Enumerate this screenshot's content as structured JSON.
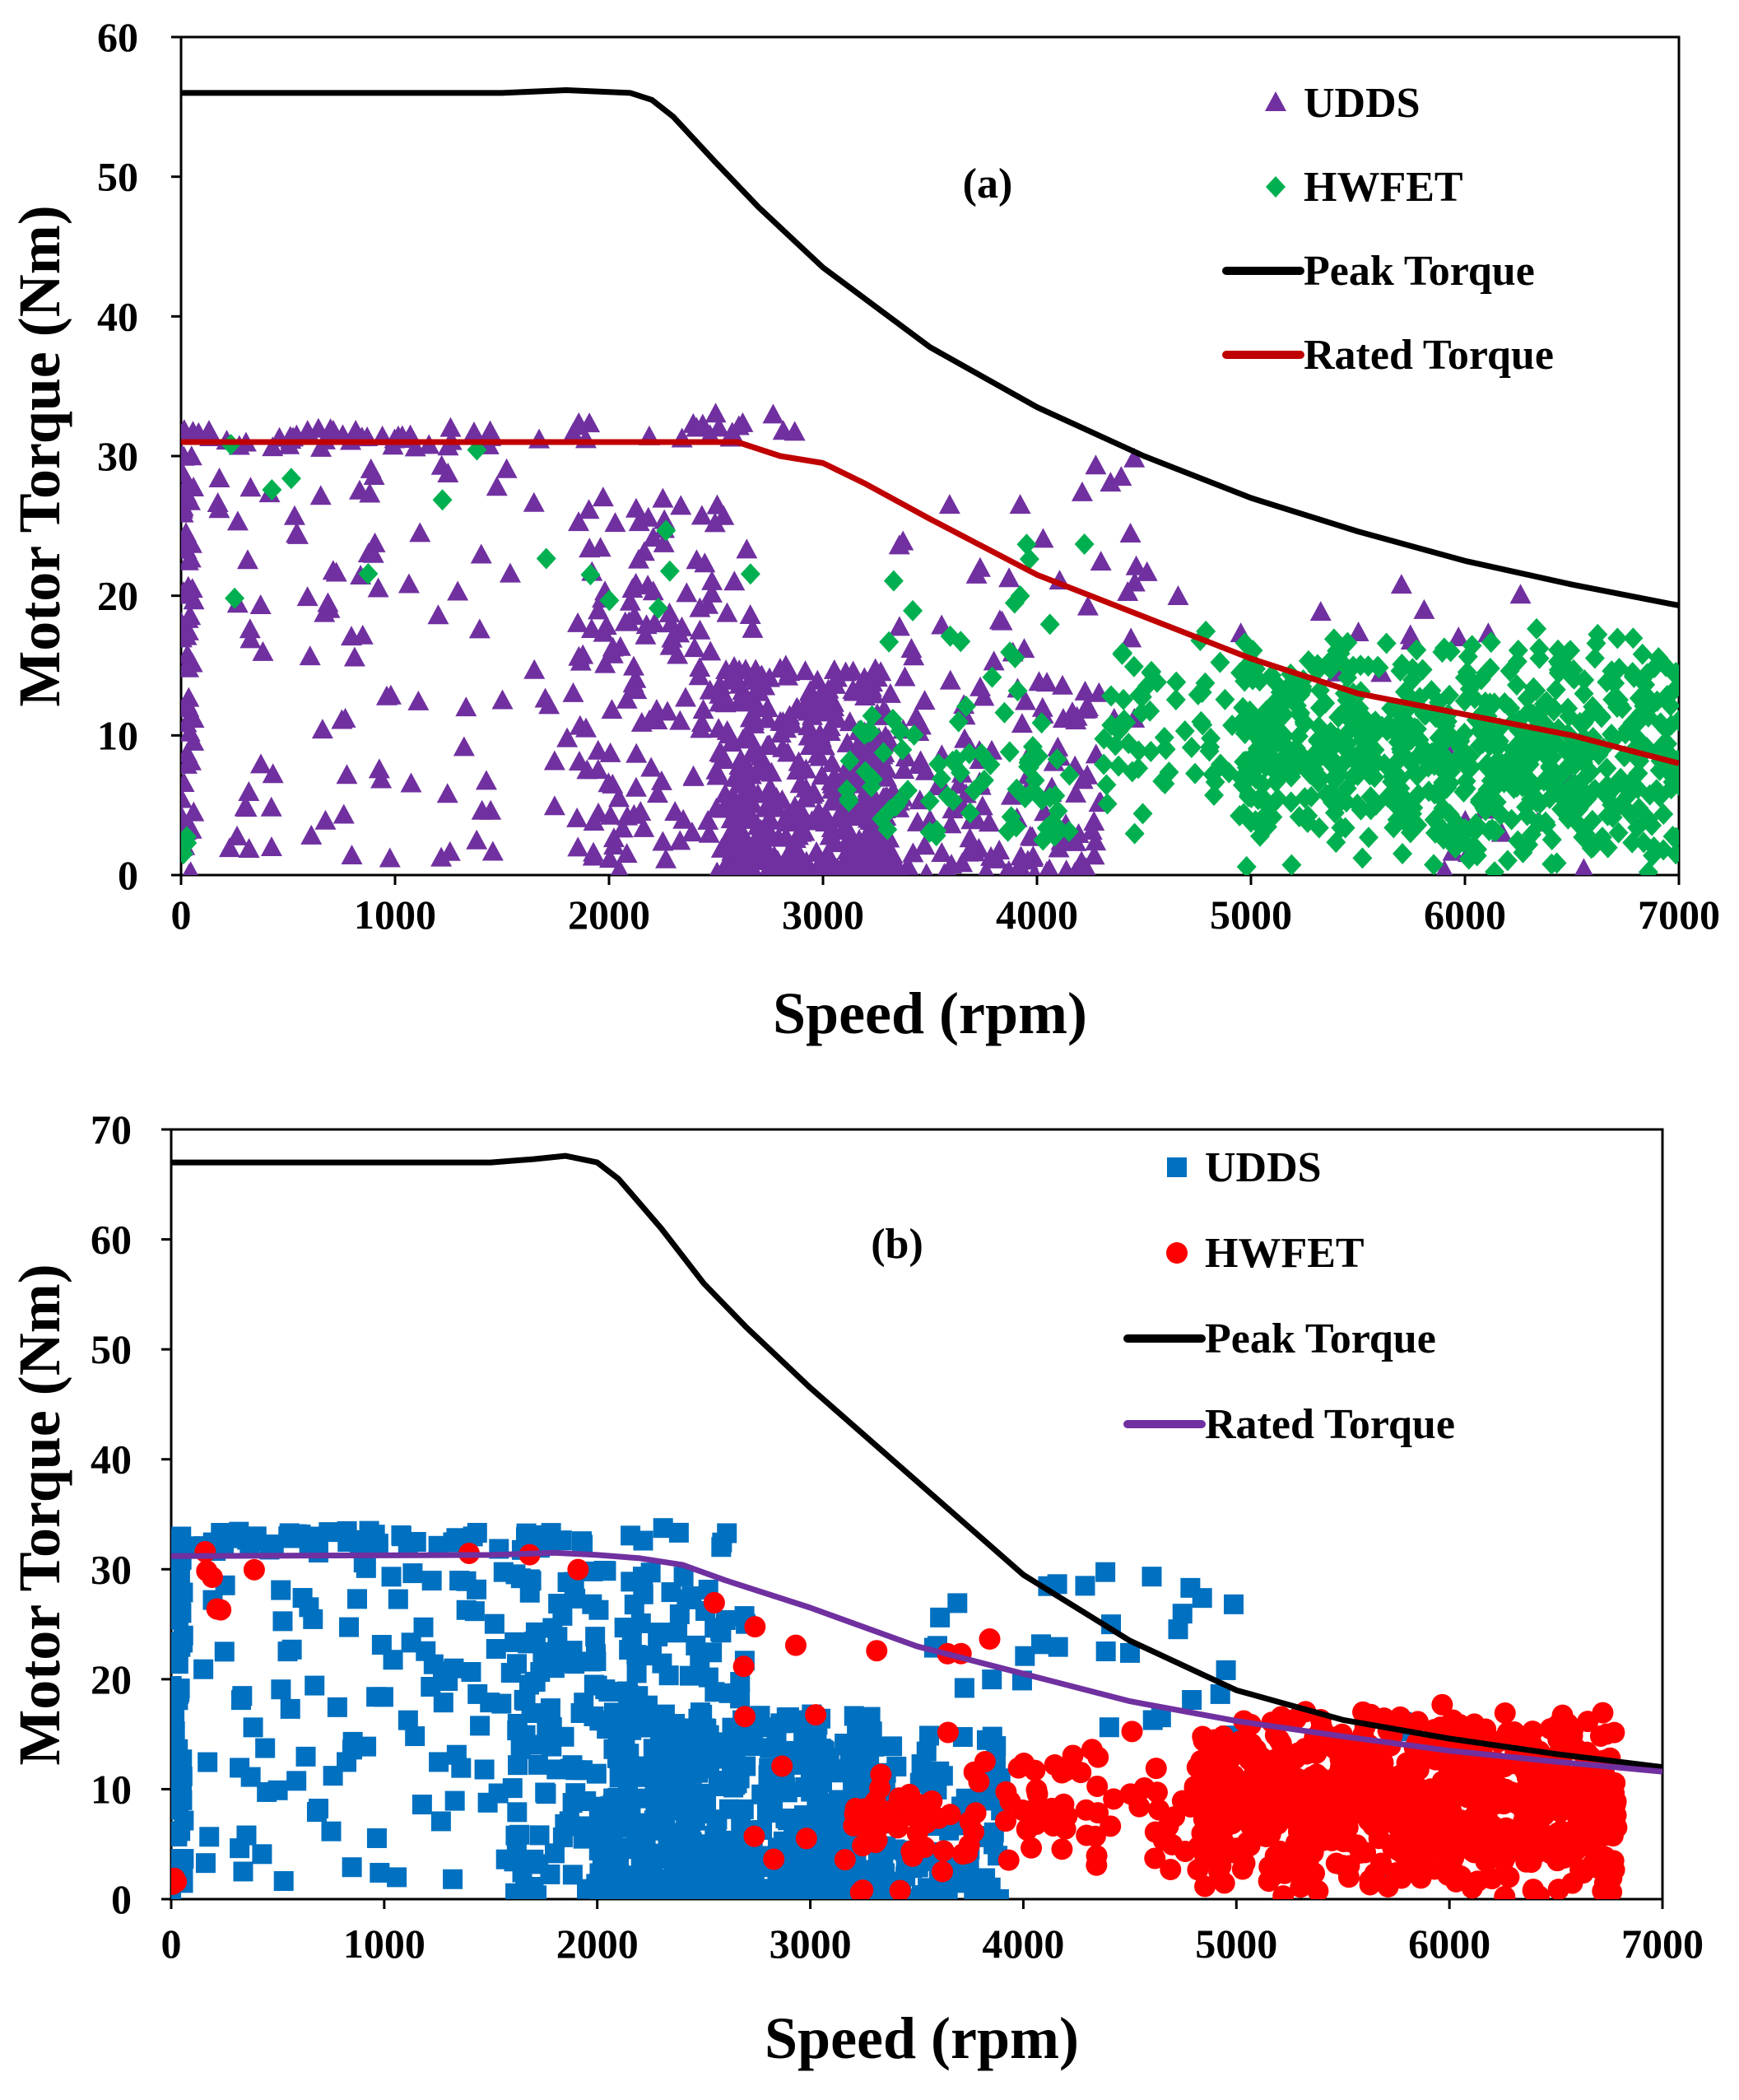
{
  "chart_data": [
    {
      "type": "scatter",
      "panel_label": "(a)",
      "xlabel": "Speed (rpm)",
      "ylabel": "Motor Torque (Nm)",
      "xlim": [
        0,
        7000
      ],
      "ylim": [
        0,
        60
      ],
      "x_ticks": [
        0,
        1000,
        2000,
        3000,
        4000,
        5000,
        6000,
        7000
      ],
      "y_ticks": [
        0,
        10,
        20,
        30,
        40,
        50,
        60
      ],
      "grid": false,
      "legend_position": "top-right",
      "series": [
        {
          "name": "UDDS",
          "kind": "scatter",
          "marker": "triangle",
          "color": "#7030a0",
          "seed": 11,
          "clusters": [
            {
              "n": 45,
              "x": [
                0,
                1700
              ],
              "y": [
                30.5,
                32
              ],
              "shape": "flat"
            },
            {
              "n": 20,
              "x": [
                1750,
                2900
              ],
              "y": [
                31,
                33
              ],
              "shape": "flat"
            },
            {
              "n": 60,
              "x": [
                0,
                60
              ],
              "y": [
                0,
                32
              ],
              "shape": "flat"
            },
            {
              "n": 90,
              "x": [
                150,
                1900
              ],
              "y": [
                1,
                30
              ],
              "shape": "flat"
            },
            {
              "n": 150,
              "x": [
                1850,
                2700
              ],
              "y": [
                0,
                27
              ],
              "shape": "flat"
            },
            {
              "n": 380,
              "x": [
                2500,
                3300
              ],
              "y": [
                0,
                15
              ],
              "shape": "low"
            },
            {
              "n": 160,
              "x": [
                3100,
                4300
              ],
              "y": [
                0,
                14
              ],
              "shape": "low"
            },
            {
              "n": 40,
              "x": [
                3300,
                4600
              ],
              "y": [
                10,
                30
              ],
              "shape": "flat"
            },
            {
              "n": 14,
              "x": [
                4600,
                6400
              ],
              "y": [
                12,
                21
              ],
              "shape": "flat"
            },
            {
              "n": 12,
              "x": [
                5900,
                6600
              ],
              "y": [
                0,
                10
              ],
              "shape": "flat"
            }
          ]
        },
        {
          "name": "HWFET",
          "kind": "scatter",
          "marker": "diamond",
          "color": "#00b050",
          "seed": 23,
          "clusters": [
            {
              "n": 14,
              "x": [
                0,
                2700
              ],
              "y": [
                19,
                31
              ],
              "shape": "flat"
            },
            {
              "n": 4,
              "x": [
                0,
                30
              ],
              "y": [
                0,
                3
              ],
              "shape": "flat"
            },
            {
              "n": 70,
              "x": [
                3100,
                4200
              ],
              "y": [
                1,
                13
              ],
              "shape": "mid"
            },
            {
              "n": 15,
              "x": [
                3300,
                4500
              ],
              "y": [
                13,
                25
              ],
              "shape": "flat"
            },
            {
              "n": 70,
              "x": [
                4300,
                5000
              ],
              "y": [
                2,
                18
              ],
              "shape": "mid"
            },
            {
              "n": 720,
              "x": [
                4950,
                7000
              ],
              "y": [
                0,
                18
              ],
              "shape": "mid"
            }
          ]
        },
        {
          "name": "Peak Torque",
          "kind": "line",
          "color": "#000000",
          "width": 7,
          "points": [
            [
              0,
              56
            ],
            [
              1500,
              56
            ],
            [
              1800,
              56.2
            ],
            [
              2100,
              56
            ],
            [
              2200,
              55.5
            ],
            [
              2300,
              54.3
            ],
            [
              2500,
              51
            ],
            [
              2700,
              47.8
            ],
            [
              3000,
              43.5
            ],
            [
              3500,
              37.8
            ],
            [
              4000,
              33.5
            ],
            [
              4500,
              30
            ],
            [
              5000,
              27
            ],
            [
              5500,
              24.6
            ],
            [
              6000,
              22.5
            ],
            [
              6500,
              20.8
            ],
            [
              7000,
              19.3
            ]
          ]
        },
        {
          "name": "Rated Torque",
          "kind": "line",
          "color": "#c00000",
          "width": 7,
          "points": [
            [
              0,
              31
            ],
            [
              2500,
              31
            ],
            [
              2600,
              31
            ],
            [
              2800,
              30
            ],
            [
              3000,
              29.5
            ],
            [
              3200,
              28
            ],
            [
              3500,
              25.5
            ],
            [
              4000,
              21.5
            ],
            [
              4500,
              18.5
            ],
            [
              5000,
              15.5
            ],
            [
              5500,
              13
            ],
            [
              6000,
              11.5
            ],
            [
              6500,
              10
            ],
            [
              7000,
              8
            ]
          ]
        }
      ]
    },
    {
      "type": "scatter",
      "panel_label": "(b)",
      "xlabel": "Speed (rpm)",
      "ylabel": "Motor Torque (Nm)",
      "xlim": [
        0,
        7000
      ],
      "ylim": [
        0,
        70
      ],
      "x_ticks": [
        0,
        1000,
        2000,
        3000,
        4000,
        5000,
        6000,
        7000
      ],
      "y_ticks": [
        0,
        10,
        20,
        30,
        40,
        50,
        60,
        70
      ],
      "grid": false,
      "legend_position": "top-right",
      "series": [
        {
          "name": "UDDS",
          "kind": "scatter",
          "marker": "square",
          "color": "#0070c0",
          "seed": 37,
          "clusters": [
            {
              "n": 55,
              "x": [
                0,
                1800
              ],
              "y": [
                31.5,
                33.5
              ],
              "shape": "flat"
            },
            {
              "n": 10,
              "x": [
                1800,
                3500
              ],
              "y": [
                32,
                34
              ],
              "shape": "flat"
            },
            {
              "n": 60,
              "x": [
                0,
                60
              ],
              "y": [
                0,
                32
              ],
              "shape": "flat"
            },
            {
              "n": 120,
              "x": [
                150,
                1900
              ],
              "y": [
                1,
                31
              ],
              "shape": "flat"
            },
            {
              "n": 170,
              "x": [
                1600,
                2700
              ],
              "y": [
                0,
                30
              ],
              "shape": "flat"
            },
            {
              "n": 420,
              "x": [
                2000,
                3300
              ],
              "y": [
                0,
                17
              ],
              "shape": "low"
            },
            {
              "n": 170,
              "x": [
                3000,
                3900
              ],
              "y": [
                0,
                15
              ],
              "shape": "low"
            },
            {
              "n": 30,
              "x": [
                3500,
                5000
              ],
              "y": [
                14,
                30
              ],
              "shape": "flat"
            },
            {
              "n": 10,
              "x": [
                5500,
                6100
              ],
              "y": [
                0,
                18
              ],
              "shape": "flat"
            }
          ]
        },
        {
          "name": "HWFET",
          "kind": "scatter",
          "marker": "circle",
          "color": "#ff0000",
          "seed": 53,
          "clusters": [
            {
              "n": 10,
              "x": [
                0,
                2600
              ],
              "y": [
                20,
                32
              ],
              "shape": "flat"
            },
            {
              "n": 3,
              "x": [
                0,
                30
              ],
              "y": [
                0,
                2
              ],
              "shape": "flat"
            },
            {
              "n": 25,
              "x": [
                2600,
                3900
              ],
              "y": [
                0,
                26
              ],
              "shape": "flat"
            },
            {
              "n": 60,
              "x": [
                3200,
                4200
              ],
              "y": [
                3,
                13
              ],
              "shape": "mid"
            },
            {
              "n": 50,
              "x": [
                4100,
                4900
              ],
              "y": [
                0,
                17
              ],
              "shape": "mid"
            },
            {
              "n": 760,
              "x": [
                4800,
                6800
              ],
              "y": [
                0,
                18
              ],
              "shape": "mid"
            },
            {
              "n": 10,
              "x": [
                6000,
                6400
              ],
              "y": [
                0,
                5
              ],
              "shape": "flat"
            }
          ]
        },
        {
          "name": "Peak Torque",
          "kind": "line",
          "color": "#000000",
          "width": 7,
          "points": [
            [
              0,
              67
            ],
            [
              1500,
              67
            ],
            [
              1700,
              67.3
            ],
            [
              1850,
              67.6
            ],
            [
              2000,
              67
            ],
            [
              2100,
              65.5
            ],
            [
              2300,
              61
            ],
            [
              2500,
              56
            ],
            [
              2700,
              52
            ],
            [
              3000,
              46.5
            ],
            [
              3500,
              38
            ],
            [
              4000,
              29.5
            ],
            [
              4500,
              23.5
            ],
            [
              5000,
              19
            ],
            [
              5500,
              16.3
            ],
            [
              6000,
              14.6
            ],
            [
              6500,
              13.2
            ],
            [
              7000,
              12
            ]
          ]
        },
        {
          "name": "Rated Torque",
          "kind": "line",
          "color": "#7030a0",
          "width": 7,
          "points": [
            [
              0,
              31.2
            ],
            [
              1500,
              31.3
            ],
            [
              1800,
              31.5
            ],
            [
              2000,
              31.3
            ],
            [
              2200,
              31
            ],
            [
              2400,
              30.4
            ],
            [
              2600,
              29
            ],
            [
              3000,
              26.5
            ],
            [
              3500,
              23
            ],
            [
              4000,
              20.5
            ],
            [
              4500,
              18
            ],
            [
              5000,
              16.2
            ],
            [
              5500,
              14.8
            ],
            [
              6000,
              13.5
            ],
            [
              6500,
              12.5
            ],
            [
              7000,
              11.6
            ]
          ]
        }
      ]
    }
  ]
}
